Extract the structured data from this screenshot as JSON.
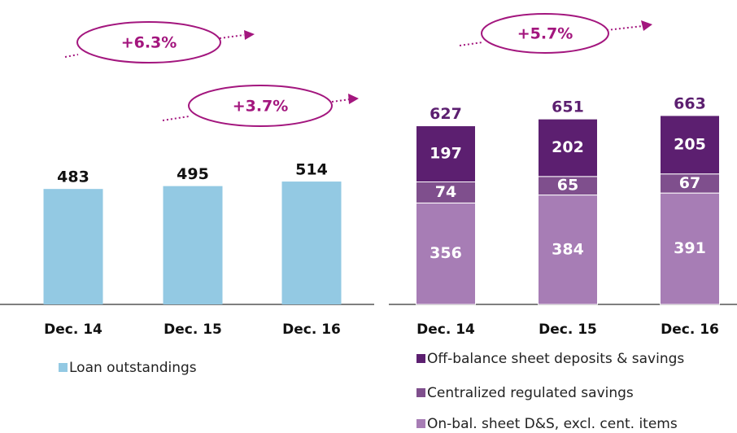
{
  "chart_data": [
    {
      "type": "bar",
      "categories": [
        "Dec. 14",
        "Dec. 15",
        "Dec. 16"
      ],
      "series": [
        {
          "name": "Loan outstandings",
          "color": "#93c9e3",
          "values": [
            483,
            495,
            514
          ]
        }
      ],
      "ylim": [
        0,
        1025
      ],
      "annotations": [
        "+6.3%",
        "+3.7%"
      ]
    },
    {
      "type": "stacked_bar",
      "categories": [
        "Dec. 14",
        "Dec. 15",
        "Dec. 16"
      ],
      "series": [
        {
          "name": "On-bal. sheet D&S, excl. cent. items",
          "color": "#a77db5",
          "values": [
            356,
            384,
            391
          ]
        },
        {
          "name": "Centralized regulated savings",
          "color": "#7f4f8d",
          "values": [
            74,
            65,
            67
          ]
        },
        {
          "name": "Off-balance sheet deposits & savings",
          "color": "#5c1f70",
          "values": [
            197,
            202,
            205
          ]
        }
      ],
      "totals": [
        627,
        651,
        663
      ],
      "ylim": [
        0,
        860
      ],
      "annotations": [
        "+5.7%"
      ]
    }
  ]
}
